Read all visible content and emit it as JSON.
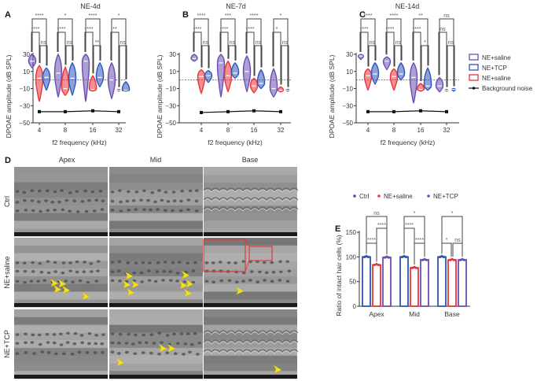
{
  "figure": {
    "panel_labels": {
      "a": "A",
      "b": "B",
      "c": "C",
      "d": "D",
      "e": "E"
    },
    "legend_abc": [
      {
        "label": "NE+saline",
        "color": "#6a4fb0",
        "kind": "box"
      },
      {
        "label": "NE+TCP",
        "color": "#2e55b8",
        "kind": "box"
      },
      {
        "label": "NE+saline",
        "color": "#e8343a",
        "kind": "box"
      },
      {
        "label": "Background noise",
        "color": "#111111",
        "kind": "line"
      }
    ],
    "panel_d": {
      "columns": [
        "Apex",
        "Mid",
        "Base"
      ],
      "rows": [
        "Ctrl",
        "NE+saline",
        "NE+TCP"
      ]
    }
  },
  "chart_data": [
    {
      "type": "violin",
      "title": "NE-4d",
      "xlabel": "f2 frequency (kHz)",
      "ylabel": "DPOAE amplitude (dB SPL)",
      "ylim": [
        -50,
        30
      ],
      "yticks": [
        "30",
        "10",
        "−10",
        "−30",
        "−50"
      ],
      "ytick_values": [
        30,
        10,
        -10,
        -30,
        -50
      ],
      "categories": [
        "4",
        "8",
        "16",
        "32"
      ],
      "reference_line": 0,
      "series": [
        {
          "name": "NE+saline (purple)",
          "color": "#6a4fb0",
          "min": [
            14,
            -20,
            -25,
            -22
          ],
          "max": [
            30,
            30,
            30,
            20
          ],
          "median": [
            22,
            8,
            22,
            0
          ]
        },
        {
          "name": "NE+saline (red)",
          "color": "#e8343a",
          "min": [
            -25,
            -18,
            -13,
            -13
          ],
          "max": [
            17,
            15,
            5,
            -11
          ],
          "median": [
            2,
            -10,
            -11,
            -12
          ]
        },
        {
          "name": "NE+TCP",
          "color": "#2e55b8",
          "min": [
            -12,
            -18,
            -8,
            -13
          ],
          "max": [
            14,
            20,
            20,
            -2
          ],
          "median": [
            3,
            2,
            3,
            -12
          ]
        }
      ],
      "background_noise": [
        -37,
        -37,
        -36,
        -37
      ],
      "significance": [
        {
          "purple_vs_blue": "****",
          "purple_vs_red": "****",
          "red_vs_blue": "ns"
        },
        {
          "purple_vs_blue": "*",
          "purple_vs_red": "****",
          "red_vs_blue": "ns"
        },
        {
          "purple_vs_blue": "****",
          "purple_vs_red": "****",
          "red_vs_blue": "**"
        },
        {
          "purple_vs_blue": "*",
          "purple_vs_red": "**",
          "red_vs_blue": "ns"
        }
      ]
    },
    {
      "type": "violin",
      "title": "NE-7d",
      "xlabel": "f2 frequency (kHz)",
      "ylabel": "DPOAE amplitude (dB SPL)",
      "ylim": [
        -50,
        30
      ],
      "yticks": [
        "30",
        "10",
        "−10",
        "−30",
        "−50"
      ],
      "ytick_values": [
        30,
        10,
        -10,
        -30,
        -50
      ],
      "categories": [
        "4",
        "8",
        "16",
        "32"
      ],
      "reference_line": 0,
      "series": [
        {
          "name": "NE+saline (purple)",
          "color": "#6a4fb0",
          "min": [
            22,
            -20,
            -14,
            -20
          ],
          "max": [
            30,
            30,
            28,
            13
          ],
          "median": [
            25,
            20,
            10,
            -10
          ]
        },
        {
          "name": "NE+saline (red)",
          "color": "#e8343a",
          "min": [
            -16,
            -14,
            -15,
            -14
          ],
          "max": [
            12,
            22,
            2,
            -8
          ],
          "median": [
            4,
            5,
            -7,
            -12
          ]
        },
        {
          "name": "NE+TCP",
          "color": "#2e55b8",
          "min": [
            -3,
            2,
            -10,
            -13
          ],
          "max": [
            11,
            20,
            12,
            -11
          ],
          "median": [
            5,
            8,
            -4,
            -12
          ]
        }
      ],
      "background_noise": [
        -38,
        -37,
        -36,
        -37
      ],
      "significance": [
        {
          "purple_vs_blue": "****",
          "purple_vs_red": "****",
          "red_vs_blue": "ns"
        },
        {
          "purple_vs_blue": "***",
          "purple_vs_red": "****",
          "red_vs_blue": "ns"
        },
        {
          "purple_vs_blue": "****",
          "purple_vs_red": "****",
          "red_vs_blue": "ns"
        },
        {
          "purple_vs_blue": "*",
          "purple_vs_red": "*",
          "red_vs_blue": "ns"
        }
      ]
    },
    {
      "type": "violin",
      "title": "NE-14d",
      "xlabel": "f2 frequency (kHz)",
      "ylabel": "DPOAE amplitude (dB SPL)",
      "ylim": [
        -50,
        30
      ],
      "yticks": [
        "30",
        "10",
        "−10",
        "−30",
        "−50"
      ],
      "ytick_values": [
        30,
        10,
        -10,
        -30,
        -50
      ],
      "categories": [
        "4",
        "8",
        "16",
        "32"
      ],
      "reference_line": 0,
      "series": [
        {
          "name": "NE+saline (purple)",
          "color": "#6a4fb0",
          "min": [
            24,
            12,
            -27,
            -14
          ],
          "max": [
            30,
            27,
            20,
            3
          ],
          "median": [
            28,
            22,
            3,
            -7
          ]
        },
        {
          "name": "NE+saline (red)",
          "color": "#e8343a",
          "min": [
            -12,
            -12,
            -13,
            -13
          ],
          "max": [
            13,
            13,
            -4,
            -11
          ],
          "median": [
            5,
            4,
            -11,
            -12
          ]
        },
        {
          "name": "NE+TCP",
          "color": "#2e55b8",
          "min": [
            -5,
            0,
            -12,
            -13
          ],
          "max": [
            20,
            20,
            14,
            -10
          ],
          "median": [
            7,
            7,
            -7,
            -11
          ]
        }
      ],
      "background_noise": [
        -37,
        -37,
        -36,
        -37
      ],
      "significance": [
        {
          "purple_vs_blue": "****",
          "purple_vs_red": "****",
          "red_vs_blue": "ns"
        },
        {
          "purple_vs_blue": "****",
          "purple_vs_red": "****",
          "red_vs_blue": "ns"
        },
        {
          "purple_vs_blue": "**",
          "purple_vs_red": "****",
          "red_vs_blue": "*"
        },
        {
          "purple_vs_blue": "ns",
          "purple_vs_red": "ns",
          "red_vs_blue": "ns"
        }
      ]
    },
    {
      "type": "bar",
      "title": "",
      "xlabel": "",
      "ylabel": "Ratio of intact hair cells (%)",
      "ylim": [
        0,
        150
      ],
      "yticks": [
        "0",
        "50",
        "100",
        "150"
      ],
      "ytick_values": [
        0,
        50,
        100,
        150
      ],
      "categories": [
        "Apex",
        "Mid",
        "Base"
      ],
      "legend_position": "top",
      "series": [
        {
          "name": "Ctrl",
          "color": "#2e55b8",
          "values": [
            100,
            100,
            100
          ]
        },
        {
          "name": "NE+saline",
          "color": "#e8343a",
          "values": [
            84,
            78,
            94
          ]
        },
        {
          "name": "NE+TCP",
          "color": "#6a4fb0",
          "values": [
            99,
            94,
            94
          ]
        }
      ],
      "significance": [
        {
          "ctrl_vs_tcp": "ns",
          "saline_vs_tcp": "****",
          "ctrl_vs_saline": "****"
        },
        {
          "ctrl_vs_tcp": "*",
          "saline_vs_tcp": "****",
          "ctrl_vs_saline": "****"
        },
        {
          "ctrl_vs_tcp": "*",
          "saline_vs_tcp": "ns",
          "ctrl_vs_saline": "*"
        }
      ]
    }
  ]
}
